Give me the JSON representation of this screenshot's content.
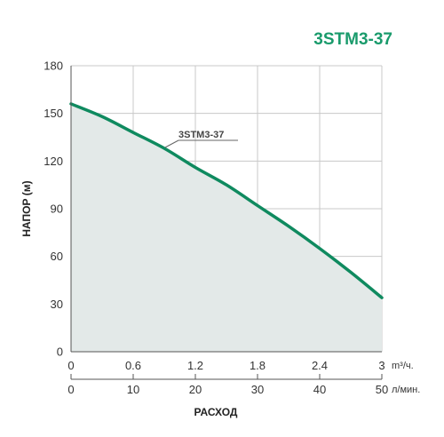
{
  "chart_data": {
    "type": "area",
    "title": "3STM3-37",
    "ylabel": "НАПОР (м)",
    "xlabel": "РАСХОД",
    "ylim": [
      0,
      180
    ],
    "yticks": [
      "0",
      "30",
      "60",
      "90",
      "120",
      "150",
      "180"
    ],
    "x_axis_primary": {
      "unit": "m³/ч.",
      "range": [
        0,
        3
      ],
      "ticks": [
        "0",
        "0.6",
        "1.2",
        "1.8",
        "2.4",
        "3"
      ]
    },
    "x_axis_secondary": {
      "unit": "л/мин.",
      "range": [
        0,
        50
      ],
      "ticks": [
        "0",
        "10",
        "20",
        "30",
        "40",
        "50"
      ]
    },
    "grid": true,
    "series": [
      {
        "name": "3STM3-37",
        "color": "#0f8a5f",
        "fill": "#e3e9e8",
        "x": [
          0,
          0.3,
          0.6,
          0.9,
          1.2,
          1.5,
          1.8,
          2.1,
          2.4,
          2.7,
          3.0
        ],
        "y": [
          156,
          148,
          138,
          128,
          116,
          105,
          92,
          79,
          65,
          50,
          34
        ]
      }
    ]
  }
}
